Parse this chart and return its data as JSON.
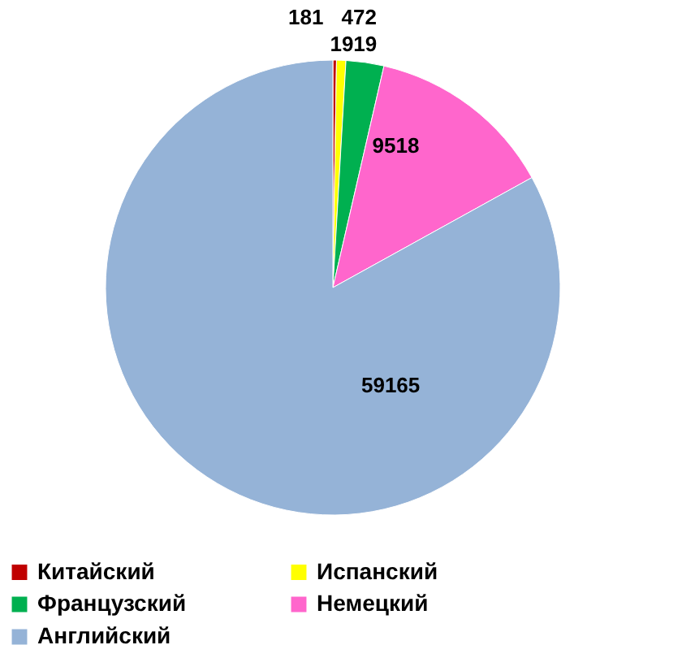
{
  "chart_data": {
    "type": "pie",
    "categories": [
      "Китайский",
      "Испанский",
      "Французский",
      "Немецкий",
      "Английский"
    ],
    "values": [
      181,
      472,
      1919,
      9518,
      59165
    ],
    "colors": [
      "#c00000",
      "#ffff00",
      "#00b050",
      "#ff66cc",
      "#95b3d7"
    ],
    "data_labels": true,
    "legend": "bottom"
  }
}
